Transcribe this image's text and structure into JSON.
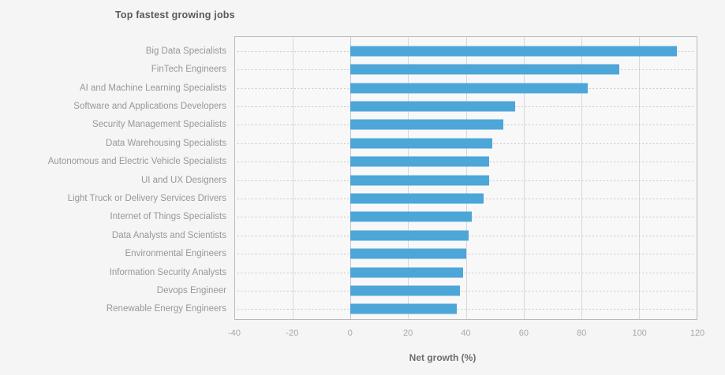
{
  "chart_data": {
    "type": "bar",
    "orientation": "horizontal",
    "title": "Top fastest growing jobs",
    "xlabel": "Net growth (%)",
    "ylabel": "",
    "xlim": [
      -40,
      120
    ],
    "xticks": [
      -40,
      -20,
      0,
      20,
      40,
      60,
      80,
      100,
      120
    ],
    "grid": true,
    "legend": false,
    "categories": [
      "Big Data Specialists",
      "FinTech Engineers",
      "AI and Machine Learning Specialists",
      "Software and Applications Developers",
      "Security Management Specialists",
      "Data Warehousing Specialists",
      "Autonomous and Electric Vehicle Specialists",
      "UI and UX Designers",
      "Light Truck or Delivery Services Drivers",
      "Internet of Things Specialists",
      "Data Analysts and Scientists",
      "Environmental Engineers",
      "Information Security Analysts",
      "Devops Engineer",
      "Renewable Energy Engineers"
    ],
    "values": [
      113,
      93,
      82,
      57,
      53,
      49,
      48,
      48,
      46,
      42,
      41,
      40,
      39,
      38,
      37
    ]
  },
  "colors": {
    "bar": "#4da6d8",
    "page_background": "#f5f5f6",
    "plot_background": "#f8f8f9",
    "plot_border": "#b9babc",
    "gridline": "#d8d8da",
    "zero_line": "#c6c6c8",
    "leader_dots": "#c9c9cb",
    "title_text": "#58595b",
    "category_text": "#97989b",
    "tick_text": "#a6a7a9",
    "axis_title_text": "#6d6e70"
  }
}
